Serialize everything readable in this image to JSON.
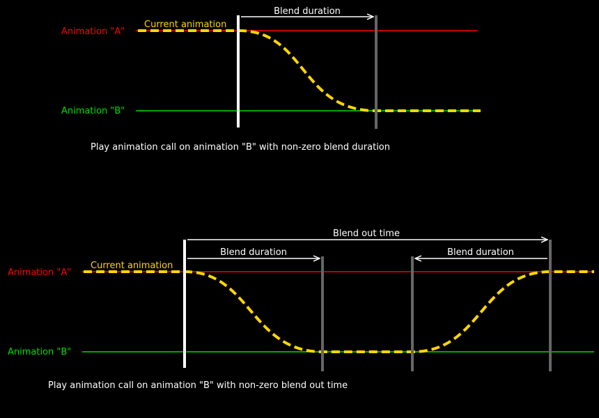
{
  "colors": {
    "background": "#000000",
    "animation_a": "#ff0000",
    "animation_b": "#00dd00",
    "current": "#ffd700",
    "marker_start": "#ffffff",
    "marker_end": "#666666",
    "text": "#ffffff"
  },
  "diagram1": {
    "label_a": "Animation \"A\"",
    "label_b": "Animation \"B\"",
    "current_label": "Current animation",
    "blend_duration_label": "Blend duration",
    "caption": "Play animation call on animation \"B\" with non-zero blend duration"
  },
  "diagram2": {
    "label_a": "Animation \"A\"",
    "label_b": "Animation \"B\"",
    "current_label": "Current animation",
    "blend_out_label": "Blend out time",
    "blend_duration_left_label": "Blend duration",
    "blend_duration_right_label": "Blend duration",
    "caption": "Play animation call on animation \"B\" with non-zero blend out time"
  }
}
